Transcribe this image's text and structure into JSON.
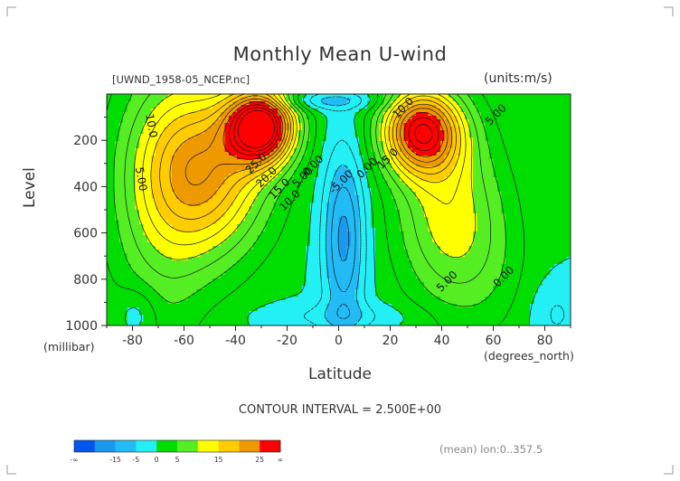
{
  "title": "Monthly Mean U-wind",
  "file_label": "[UWND_1958-05_NCEP.nc]",
  "units_label": "(units:m/s)",
  "contour_interval": "CONTOUR INTERVAL = 2.500E+00",
  "mean_label": "(mean) lon:0..357.5",
  "colors": {
    "band": [
      "#0055ee",
      "#1a99ee",
      "#22bbf5",
      "#22f0f5",
      "#00dd00",
      "#55ee22",
      "#ffff00",
      "#ffcc00",
      "#ee9900",
      "#ff0000"
    ]
  },
  "chart_data": {
    "type": "heatmap",
    "title": "Monthly Mean U-wind",
    "xlabel": "Latitude",
    "x_unit_label": "(degrees_north)",
    "ylabel": "Level",
    "y_unit_label": "(millibar)",
    "xlim": [
      -90,
      90
    ],
    "ylim": [
      1000,
      0
    ],
    "x_ticks": [
      -80,
      -60,
      -40,
      -20,
      0,
      20,
      40,
      60,
      80
    ],
    "x_tick_labels": [
      "-80",
      "-60",
      "-40",
      "-20",
      "0",
      "20",
      "40",
      "60",
      "80"
    ],
    "y_ticks": [
      200,
      400,
      600,
      800,
      1000
    ],
    "y_tick_labels": [
      "200",
      "400",
      "600",
      "800",
      "1000"
    ],
    "contour_interval": 2.5,
    "jets": [
      {
        "lat": -28,
        "level": 170,
        "max": 30
      },
      {
        "lat": 32,
        "level": 170,
        "max": 25
      }
    ],
    "contour_labels": [
      {
        "text": "10.0",
        "lat": -74,
        "level": 140
      },
      {
        "text": "5.00",
        "lat": -78,
        "level": 370
      },
      {
        "text": "25.0",
        "lat": -31,
        "level": 310
      },
      {
        "text": "20.0",
        "lat": -27,
        "level": 370
      },
      {
        "text": "15.0",
        "lat": -22,
        "level": 420
      },
      {
        "text": "10.0",
        "lat": -18,
        "level": 470
      },
      {
        "text": "5.00",
        "lat": -13,
        "level": 370
      },
      {
        "text": "0.00",
        "lat": -9,
        "level": 320
      },
      {
        "text": "-5.00",
        "lat": 2,
        "level": 390
      },
      {
        "text": "0.00",
        "lat": 12,
        "level": 330
      },
      {
        "text": "10.0",
        "lat": 26,
        "level": 70
      },
      {
        "text": "5.00",
        "lat": 62,
        "level": 100
      },
      {
        "text": "15.0",
        "lat": 20,
        "level": 290
      },
      {
        "text": "5.00",
        "lat": 43,
        "level": 820
      },
      {
        "text": "0.00",
        "lat": 65,
        "level": 800
      }
    ],
    "colorbar": {
      "tick_labels": [
        "-∞",
        "-15",
        "-5",
        "0",
        "5",
        "15",
        "25",
        "∞"
      ],
      "levels": [
        -20,
        -15,
        -10,
        -5,
        0,
        5,
        10,
        15,
        20,
        25
      ]
    }
  }
}
